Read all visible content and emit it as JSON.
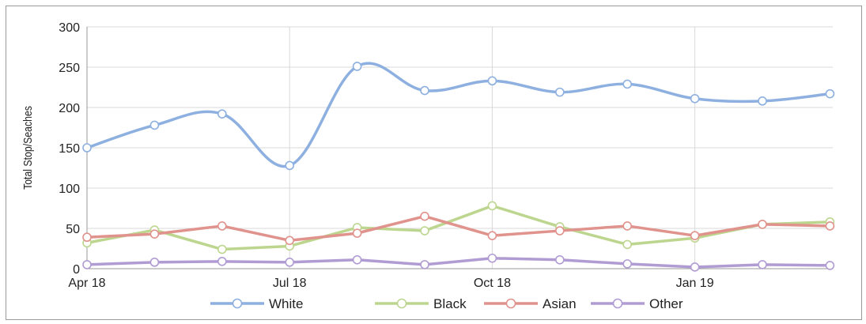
{
  "chart_data": {
    "type": "line",
    "title": "",
    "xlabel": "",
    "ylabel": "Total Stop/Seaches",
    "ylim": [
      0,
      300
    ],
    "yticks": [
      0,
      50,
      100,
      150,
      200,
      250,
      300
    ],
    "x_tick_labels": [
      "Apr 18",
      "Jul 18",
      "Oct 18",
      "Jan 19"
    ],
    "x_tick_indices": [
      0,
      3,
      6,
      9
    ],
    "grid": true,
    "legend_position": "bottom",
    "series": [
      {
        "name": "White",
        "color": "#8db0e0",
        "values": [
          150,
          178,
          192,
          128,
          251,
          221,
          233,
          219,
          229,
          211,
          208,
          217
        ]
      },
      {
        "name": "Black",
        "color": "#bdd68f",
        "values": [
          32,
          48,
          24,
          28,
          51,
          47,
          78,
          52,
          30,
          38,
          55,
          58
        ]
      },
      {
        "name": "Asian",
        "color": "#e0928c",
        "values": [
          39,
          43,
          53,
          35,
          44,
          65,
          41,
          47,
          53,
          41,
          55,
          53
        ]
      },
      {
        "name": "Other",
        "color": "#b09cd3",
        "values": [
          5,
          8,
          9,
          8,
          11,
          5,
          13,
          11,
          6,
          2,
          5,
          4
        ]
      }
    ]
  }
}
